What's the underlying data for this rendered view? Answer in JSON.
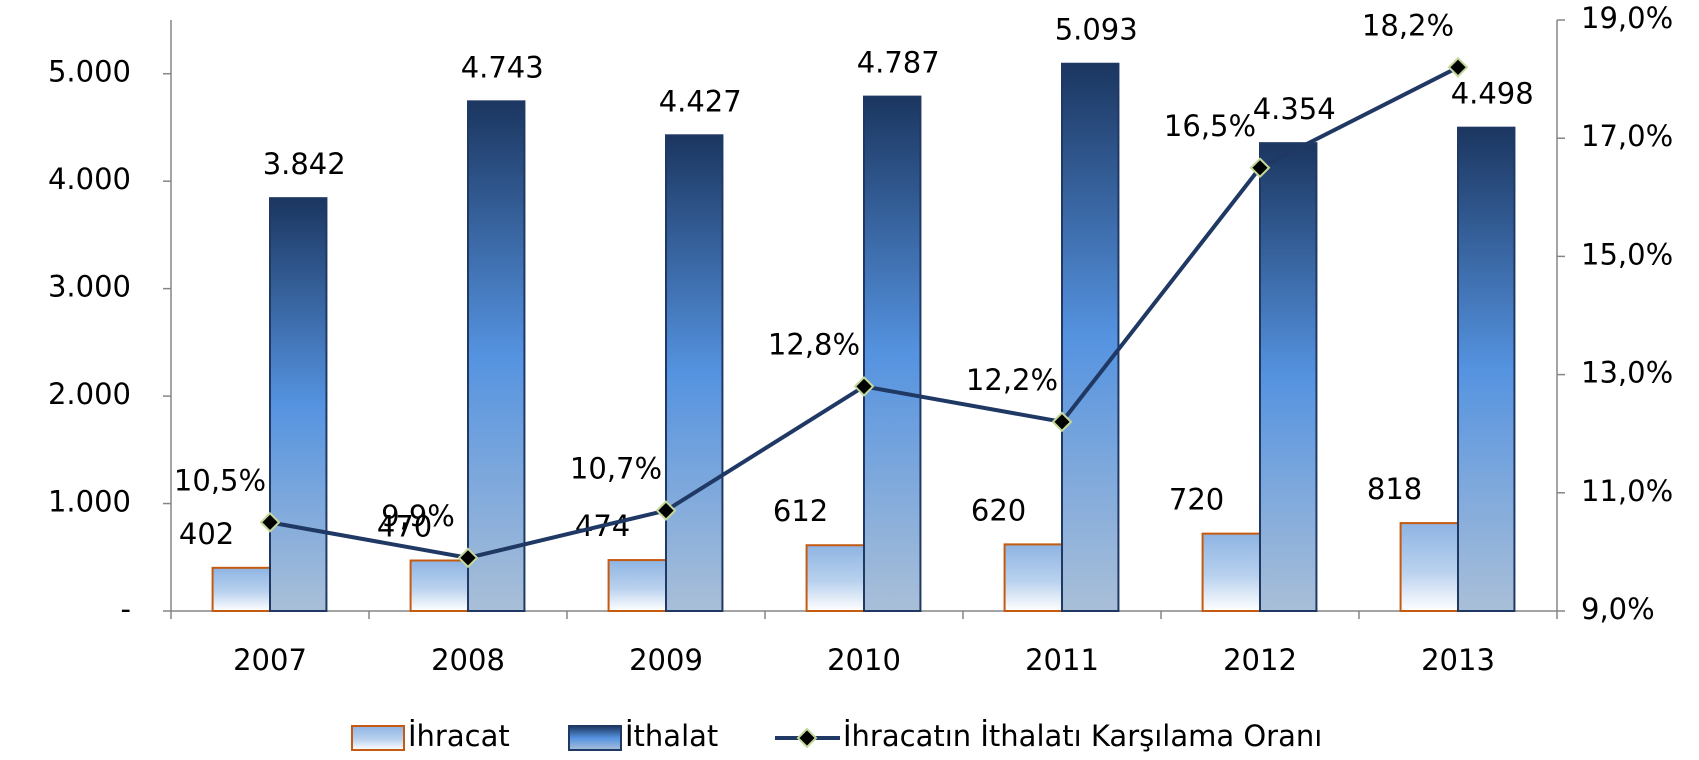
{
  "chart_data": {
    "type": "bar_line",
    "categories": [
      "2007",
      "2008",
      "2009",
      "2010",
      "2011",
      "2012",
      "2013"
    ],
    "series": [
      {
        "name": "İhracat",
        "color": "#c55a11",
        "values": [
          402,
          470,
          474,
          612,
          620,
          720,
          818
        ],
        "value_labels": [
          "402",
          "470",
          "474",
          "612",
          "620",
          "720",
          "818"
        ]
      },
      {
        "name": "İthalat",
        "color": "#1f3864",
        "values": [
          3842,
          4743,
          4427,
          4787,
          5093,
          4354,
          4498
        ],
        "value_labels": [
          "3.842",
          "4.743",
          "4.427",
          "4.787",
          "5.093",
          "4.354",
          "4.498"
        ]
      },
      {
        "name": "İhracatın İthalatı Karşılama Oranı",
        "color": "#1f3864",
        "marker_color": "#c4d79b",
        "axis": "y2",
        "values": [
          10.5,
          9.9,
          10.7,
          12.8,
          12.2,
          16.5,
          18.2
        ],
        "value_labels": [
          "10,5%",
          "9,9%",
          "10,7%",
          "12,8%",
          "12,2%",
          "16,5%",
          "18,2%"
        ]
      }
    ],
    "ylim": [
      0,
      5500
    ],
    "yticks": [
      {
        "value": 0,
        "label": "-"
      },
      {
        "value": 1000,
        "label": "1.000"
      },
      {
        "value": 2000,
        "label": "2.000"
      },
      {
        "value": 3000,
        "label": "3.000"
      },
      {
        "value": 4000,
        "label": "4.000"
      },
      {
        "value": 5000,
        "label": "5.000"
      }
    ],
    "y2lim": [
      9,
      19
    ],
    "y2ticks": [
      {
        "value": 9,
        "label": "9,0%"
      },
      {
        "value": 11,
        "label": "11,0%"
      },
      {
        "value": 13,
        "label": "13,0%"
      },
      {
        "value": 15,
        "label": "15,0%"
      },
      {
        "value": 17,
        "label": "17,0%"
      },
      {
        "value": 19,
        "label": "19,0%"
      }
    ],
    "legend": "bottom"
  }
}
